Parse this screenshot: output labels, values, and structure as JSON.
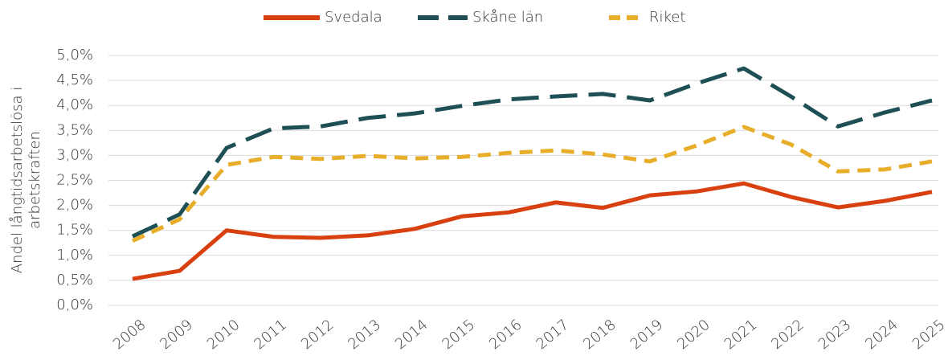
{
  "chart_data": {
    "type": "line",
    "categories": [
      "2008",
      "2009",
      "2010",
      "2011",
      "2012",
      "2013",
      "2014",
      "2015",
      "2016",
      "2017",
      "2018",
      "2019",
      "2020",
      "2021",
      "2022",
      "2023",
      "2024",
      "2025"
    ],
    "series": [
      {
        "name": "Svedala",
        "color": "#d9400f",
        "line_style": "solid",
        "values": [
          0.53,
          0.69,
          1.5,
          1.37,
          1.35,
          1.4,
          1.53,
          1.78,
          1.86,
          2.06,
          1.95,
          2.2,
          2.28,
          2.44,
          2.17,
          1.96,
          2.09,
          2.27
        ]
      },
      {
        "name": "Skåne län",
        "color": "#1d4f55",
        "line_style": "long-dash",
        "values": [
          1.38,
          1.82,
          3.15,
          3.54,
          3.58,
          3.75,
          3.84,
          3.99,
          4.12,
          4.18,
          4.23,
          4.1,
          4.44,
          4.74,
          4.18,
          3.58,
          3.86,
          4.1
        ]
      },
      {
        "name": "Riket",
        "color": "#e8ae2a",
        "line_style": "dash",
        "values": [
          1.29,
          1.72,
          2.81,
          2.97,
          2.93,
          2.99,
          2.94,
          2.97,
          3.05,
          3.1,
          3.02,
          2.88,
          3.2,
          3.57,
          3.22,
          2.68,
          2.72,
          2.88
        ]
      }
    ],
    "ylabel": [
      "Andel långtidsarbetslösa i",
      "arbetskraften"
    ],
    "ylim": [
      0,
      5
    ],
    "yticks": [
      {
        "value": 0,
        "label": "0,0%"
      },
      {
        "value": 0.5,
        "label": "0,5%"
      },
      {
        "value": 1,
        "label": "1,0%"
      },
      {
        "value": 1.5,
        "label": "1,5%"
      },
      {
        "value": 2,
        "label": "2,0%"
      },
      {
        "value": 2.5,
        "label": "2,5%"
      },
      {
        "value": 3,
        "label": "3,0%"
      },
      {
        "value": 3.5,
        "label": "3,5%"
      },
      {
        "value": 4,
        "label": "4,0%"
      },
      {
        "value": 4.5,
        "label": "4,5%"
      },
      {
        "value": 5,
        "label": "5,0%"
      }
    ],
    "grid": true,
    "legend": "top"
  }
}
